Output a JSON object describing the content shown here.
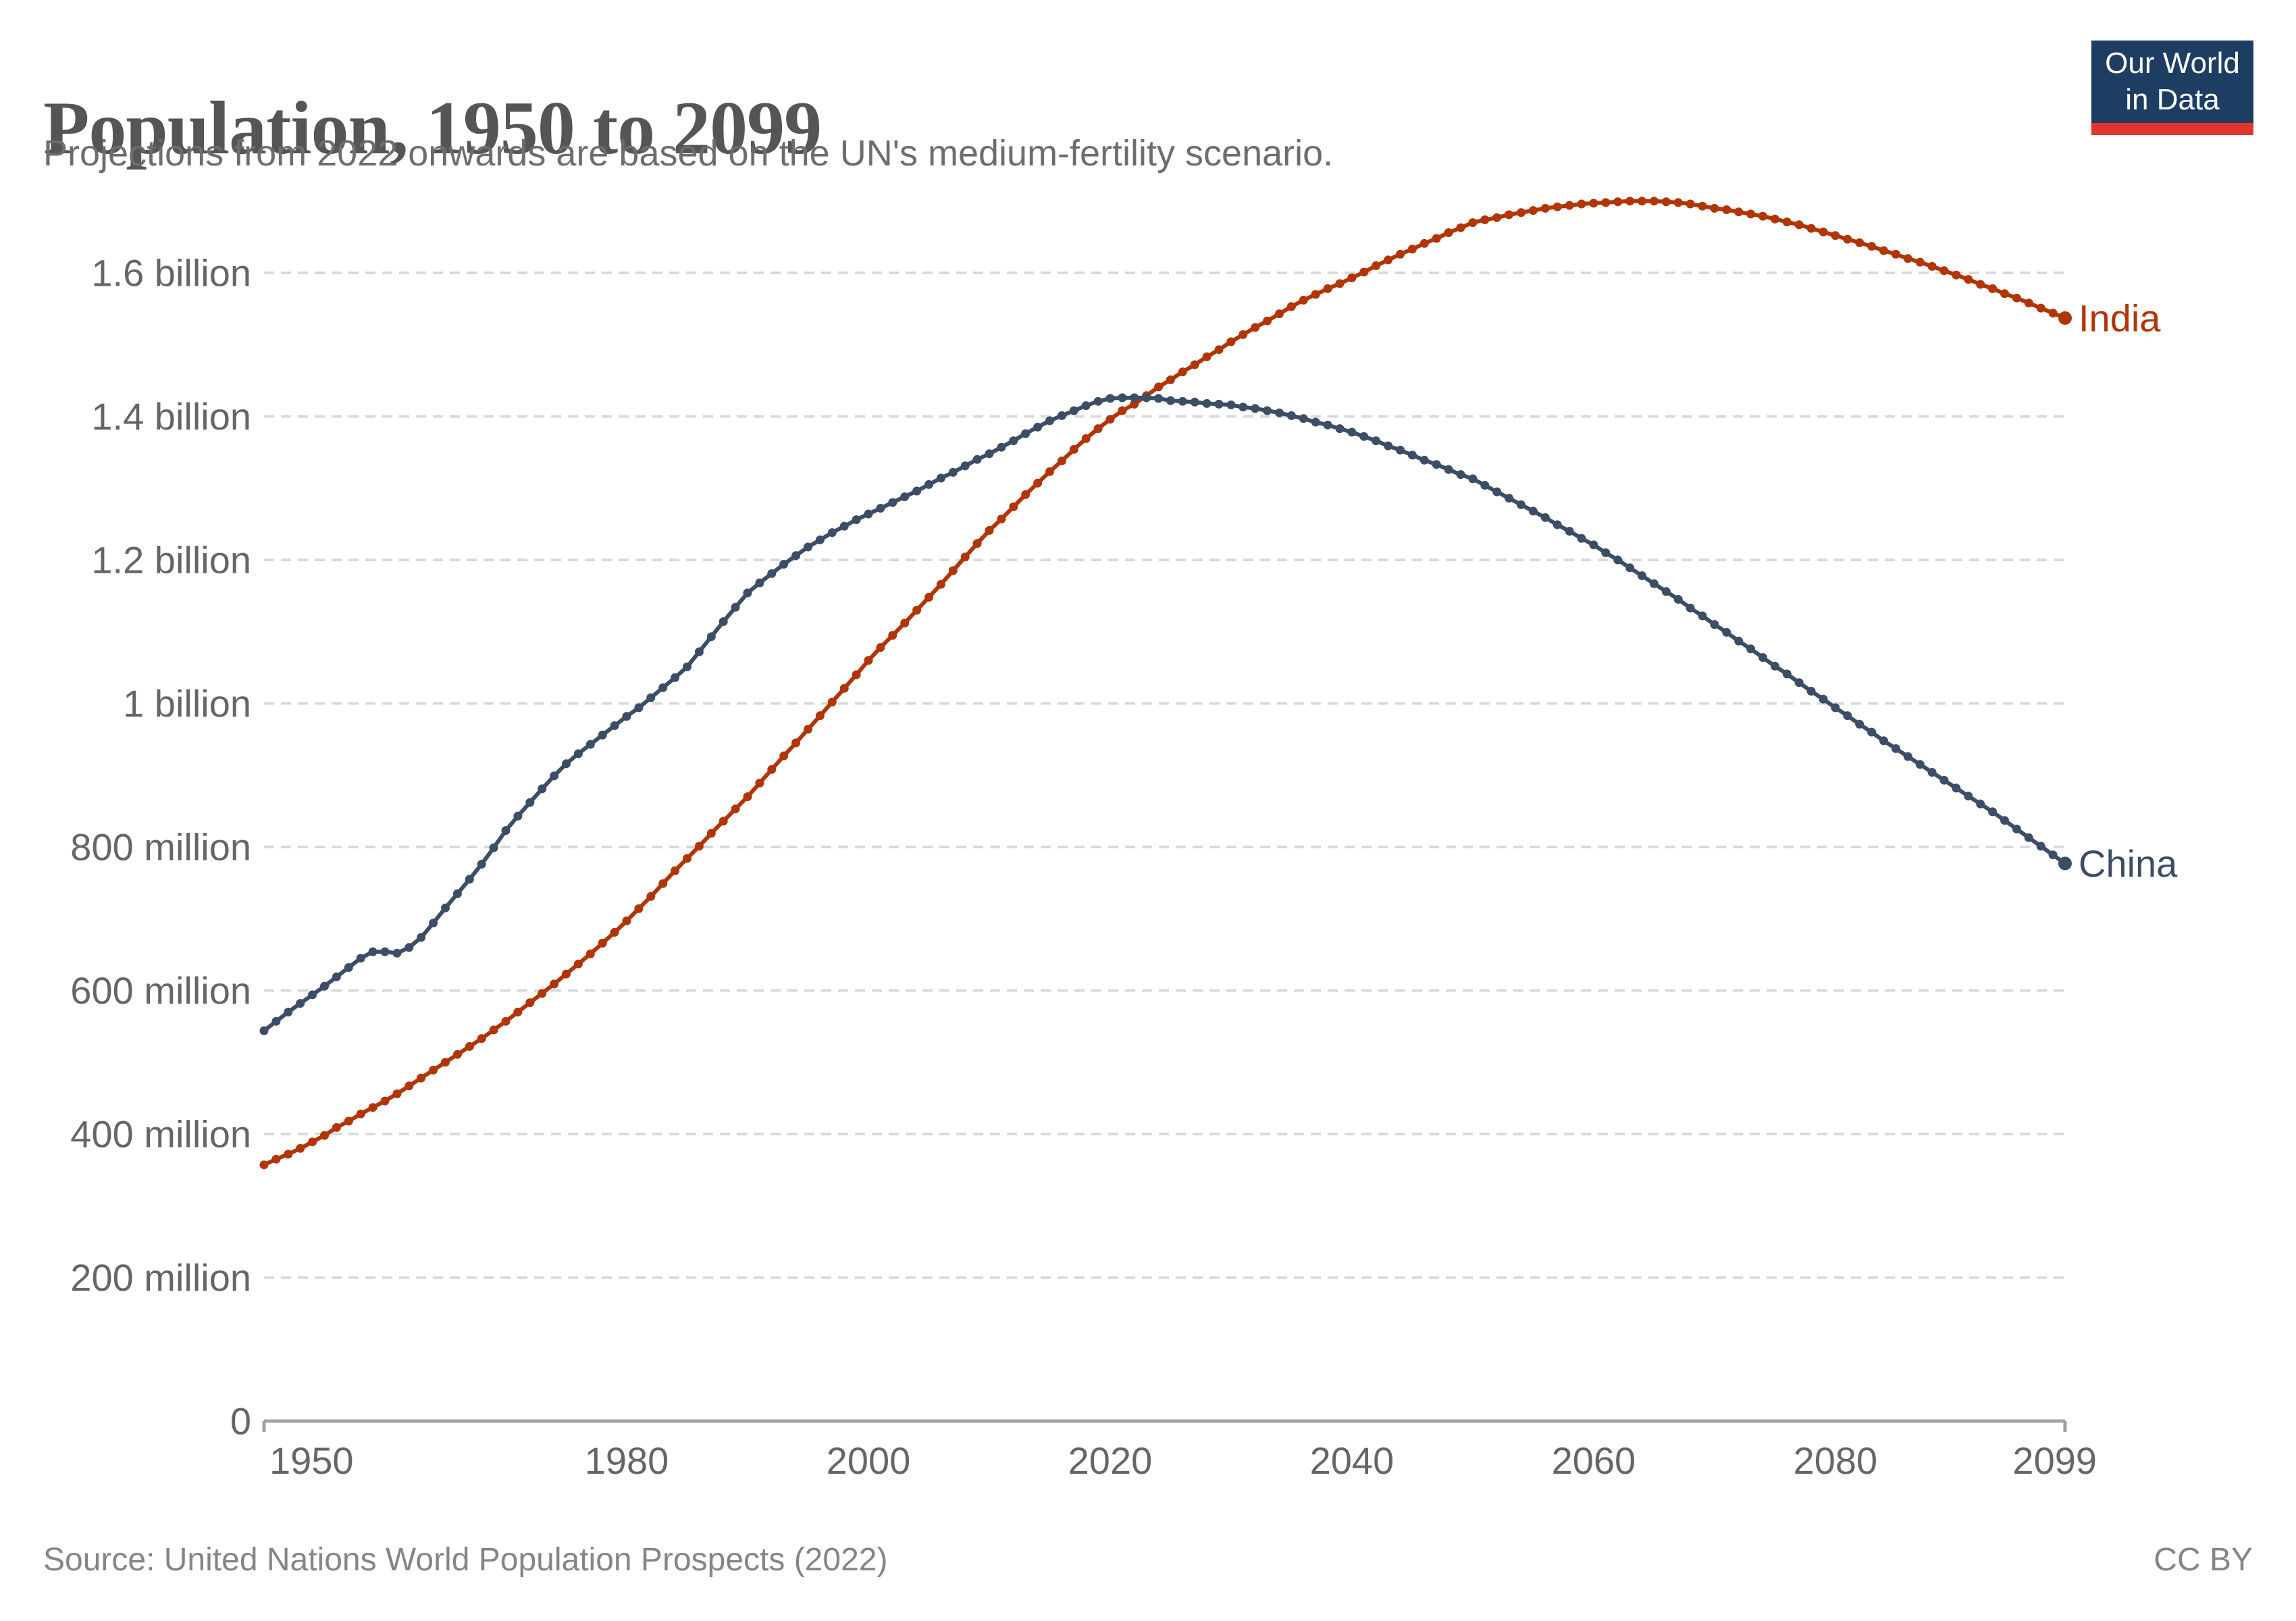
{
  "header": {
    "title": "Population, 1950 to 2099",
    "subtitle": "Projections from 2022 onwards are based on the UN's medium-fertility scenario.",
    "logo": {
      "line1": "Our World",
      "line2": "in Data"
    }
  },
  "footer": {
    "source": "Source: United Nations World Population Prospects (2022)",
    "license": "CC BY"
  },
  "colors": {
    "india": "#b13507",
    "china": "#3c4e66",
    "gridline": "#d9d9d9",
    "axis": "#a2a2a2",
    "tick_label": "#666666",
    "title": "#555555",
    "subtitle": "#6d6d6d",
    "footer": "#858585",
    "logo_bg": "#1d3d63",
    "logo_bar": "#e0362d"
  },
  "chart_data": {
    "type": "line",
    "title": "Population, 1950 to 2099",
    "subtitle": "Projections from 2022 onwards are based on the UN's medium-fertility scenario.",
    "xlabel": "",
    "ylabel": "",
    "unit": "people (millions)",
    "grid": "horizontal-dashed",
    "legend_position": "line-end-labels",
    "x_range": [
      1950,
      2099
    ],
    "y_range_millions": [
      0,
      1700
    ],
    "x_ticks": [
      1950,
      1980,
      2000,
      2020,
      2040,
      2060,
      2080,
      2099
    ],
    "y_ticks": [
      {
        "value_millions": 1600,
        "label": "1.6 billion"
      },
      {
        "value_millions": 1400,
        "label": "1.4 billion"
      },
      {
        "value_millions": 1200,
        "label": "1.2 billion"
      },
      {
        "value_millions": 1000,
        "label": "1 billion"
      },
      {
        "value_millions": 800,
        "label": "800 million"
      },
      {
        "value_millions": 600,
        "label": "600 million"
      },
      {
        "value_millions": 400,
        "label": "400 million"
      },
      {
        "value_millions": 200,
        "label": "200 million"
      },
      {
        "value_millions": 0,
        "label": "0"
      }
    ],
    "x_start": 1950,
    "x_step": 1,
    "series": [
      {
        "name": "India",
        "color": "#b13507",
        "unit": "millions",
        "values": [
          357,
          365,
          372,
          380,
          389,
          398,
          409,
          418,
          428,
          437,
          446,
          456,
          467,
          478,
          489,
          500,
          511,
          522,
          533,
          545,
          557,
          570,
          583,
          596,
          609,
          623,
          637,
          651,
          666,
          681,
          697,
          714,
          731,
          749,
          767,
          784,
          801,
          819,
          836,
          853,
          870,
          889,
          908,
          927,
          945,
          964,
          983,
          1002,
          1021,
          1040,
          1060,
          1078,
          1095,
          1112,
          1130,
          1148,
          1166,
          1185,
          1204,
          1223,
          1241,
          1257,
          1274,
          1291,
          1307,
          1323,
          1338,
          1354,
          1369,
          1383,
          1396,
          1408,
          1417,
          1429,
          1441,
          1451,
          1462,
          1472,
          1483,
          1493,
          1504,
          1514,
          1524,
          1533,
          1543,
          1553,
          1562,
          1570,
          1578,
          1585,
          1593,
          1601,
          1610,
          1618,
          1626,
          1633,
          1641,
          1648,
          1656,
          1663,
          1670,
          1674,
          1677,
          1681,
          1684,
          1687,
          1690,
          1692,
          1694,
          1696,
          1697,
          1698,
          1699,
          1700,
          1700,
          1700,
          1699,
          1698,
          1696,
          1693,
          1690,
          1688,
          1685,
          1682,
          1679,
          1675,
          1671,
          1667,
          1662,
          1657,
          1652,
          1647,
          1642,
          1637,
          1631,
          1626,
          1620,
          1615,
          1609,
          1603,
          1597,
          1591,
          1584,
          1578,
          1571,
          1565,
          1558,
          1551,
          1544,
          1537
        ]
      },
      {
        "name": "China",
        "color": "#3c4e66",
        "unit": "millions",
        "values": [
          544,
          557,
          570,
          582,
          594,
          606,
          619,
          632,
          645,
          654,
          654,
          652,
          660,
          674,
          694,
          715,
          735,
          755,
          776,
          799,
          823,
          843,
          862,
          881,
          899,
          916,
          930,
          943,
          956,
          969,
          982,
          994,
          1008,
          1022,
          1036,
          1051,
          1072,
          1093,
          1114,
          1134,
          1154,
          1168,
          1181,
          1194,
          1206,
          1218,
          1228,
          1238,
          1247,
          1256,
          1264,
          1272,
          1280,
          1288,
          1296,
          1305,
          1314,
          1322,
          1331,
          1340,
          1348,
          1357,
          1366,
          1376,
          1385,
          1394,
          1401,
          1408,
          1415,
          1421,
          1425,
          1426,
          1426,
          1426,
          1425,
          1422,
          1421,
          1420,
          1418,
          1417,
          1416,
          1413,
          1411,
          1408,
          1405,
          1401,
          1397,
          1392,
          1388,
          1383,
          1378,
          1372,
          1366,
          1359,
          1353,
          1346,
          1339,
          1333,
          1326,
          1319,
          1313,
          1304,
          1295,
          1286,
          1277,
          1268,
          1259,
          1249,
          1240,
          1230,
          1221,
          1210,
          1200,
          1189,
          1178,
          1167,
          1156,
          1145,
          1133,
          1122,
          1110,
          1099,
          1087,
          1076,
          1064,
          1052,
          1041,
          1029,
          1017,
          1006,
          994,
          983,
          971,
          960,
          948,
          937,
          926,
          915,
          904,
          893,
          882,
          871,
          860,
          849,
          837,
          825,
          813,
          801,
          789,
          777
        ]
      }
    ]
  }
}
